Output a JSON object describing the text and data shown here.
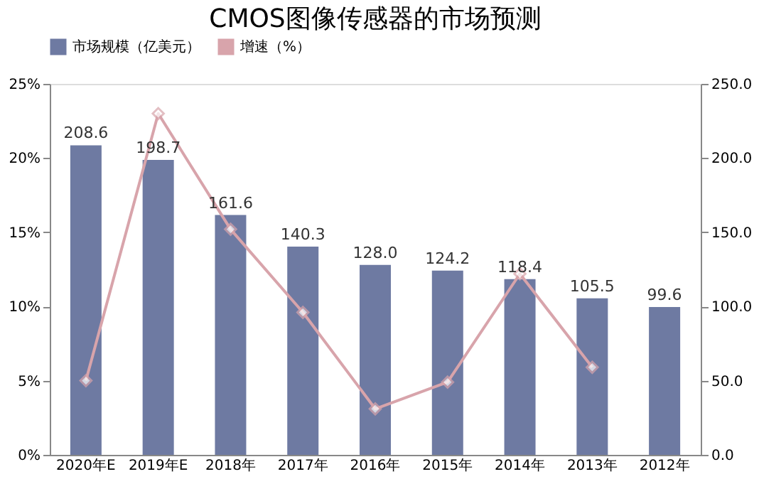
{
  "chart_data": {
    "type": "bar",
    "title": "CMOS图像传感器的市场预测",
    "categories": [
      "2020年E",
      "2019年E",
      "2018年",
      "2017年",
      "2016年",
      "2015年",
      "2014年",
      "2013年",
      "2012年"
    ],
    "series": [
      {
        "name": "市场规模（亿美元）",
        "axis": "y2",
        "color": "#6e7aa2",
        "values": [
          208.6,
          198.7,
          161.6,
          140.3,
          128.0,
          124.2,
          118.4,
          105.5,
          99.6
        ],
        "value_labels": [
          "208.6",
          "198.7",
          "161.6",
          "140.3",
          "128.0",
          "124.2",
          "118.4",
          "105.5",
          "99.6"
        ]
      },
      {
        "name": "增速（%）",
        "type": "line",
        "color": "#d8a4ab",
        "marker": "diamond",
        "values": [
          5.0,
          23.0,
          15.2,
          9.6,
          3.1,
          4.9,
          12.2,
          5.9,
          null
        ]
      }
    ],
    "ylim": [
      0,
      25
    ],
    "yticks": [
      {
        "value": 0,
        "label": "0%"
      },
      {
        "value": 5,
        "label": "5%"
      },
      {
        "value": 10,
        "label": "10%"
      },
      {
        "value": 15,
        "label": "15%"
      },
      {
        "value": 20,
        "label": "20%"
      },
      {
        "value": 25,
        "label": "25%"
      }
    ],
    "y2lim": [
      0,
      250
    ],
    "y2ticks": [
      {
        "value": 0,
        "label": "0.0"
      },
      {
        "value": 50,
        "label": "50.0"
      },
      {
        "value": 100,
        "label": "100.0"
      },
      {
        "value": 150,
        "label": "150.0"
      },
      {
        "value": 200,
        "label": "200.0"
      },
      {
        "value": 250,
        "label": "250.0"
      }
    ],
    "grid": false,
    "legend": "top"
  }
}
